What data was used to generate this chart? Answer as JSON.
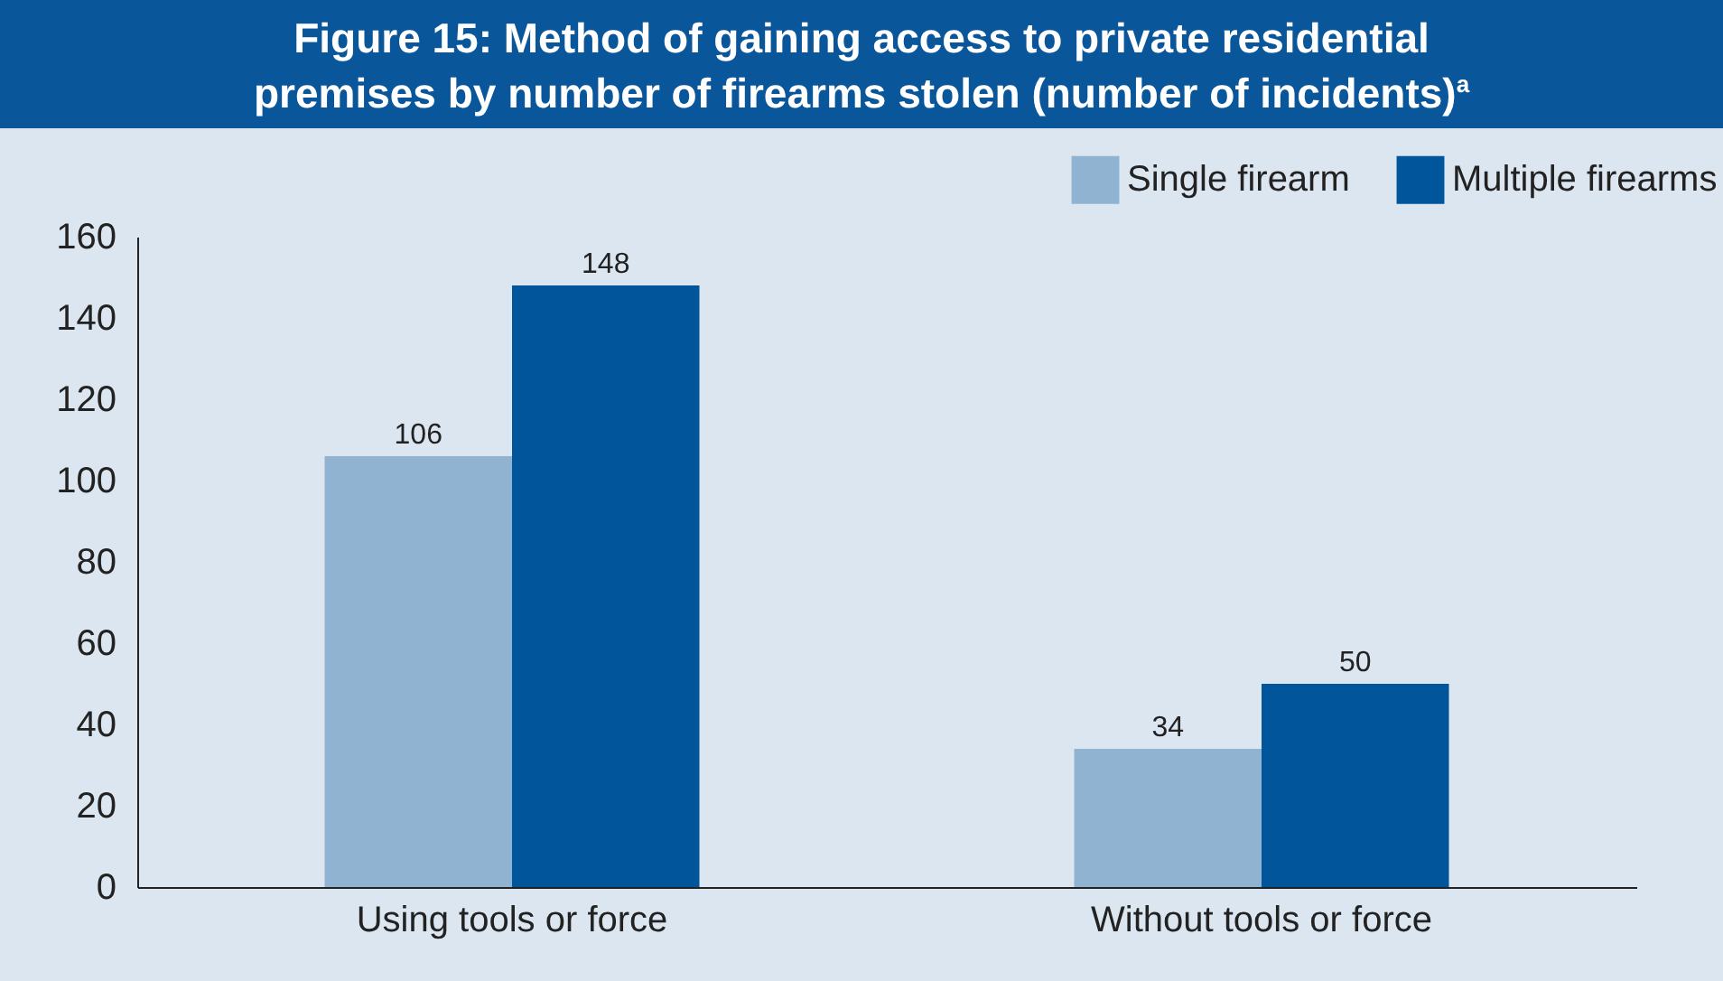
{
  "chart_data": {
    "type": "bar",
    "title": "Figure 15: Method of gaining access to private residential premises by number of firearms stolen (number of incidents)$^{a}$",
    "categories": [
      "Using tools or force",
      "Without tools or force"
    ],
    "series": [
      {
        "name": "Single firearm",
        "color": "#8fb3d1",
        "values": [
          106,
          34
        ]
      },
      {
        "name": "Multiple firearms",
        "color": "#00559b",
        "values": [
          148,
          50
        ]
      }
    ],
    "ylim": [
      0,
      160
    ],
    "yticks": [
      0,
      20,
      40,
      60,
      80,
      100,
      120,
      140,
      160
    ],
    "grid": false,
    "legend": "top right",
    "data_labels": true
  }
}
